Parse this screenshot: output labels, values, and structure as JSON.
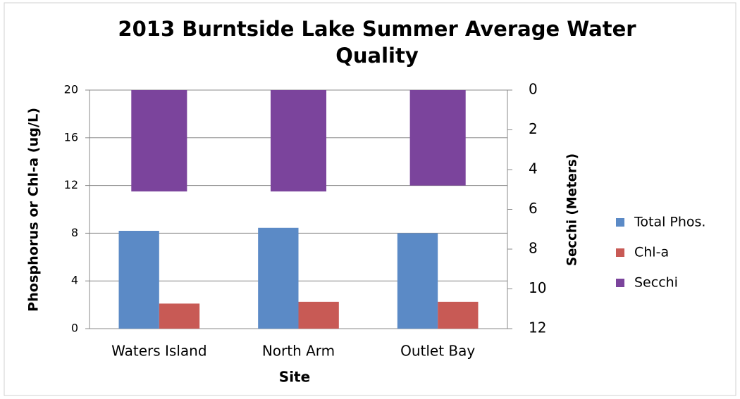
{
  "chart_data": {
    "type": "bar",
    "title": "2013 Burntside Lake Summer Average Water Quality",
    "xlabel": "Site",
    "ylabel": "Phosphorus or Chl-a (ug/L)",
    "y2label": "Secchi (Meters)",
    "categories": [
      "Waters Island",
      "North Arm",
      "Outlet Bay"
    ],
    "series": [
      {
        "name": "Total Phos.",
        "color": "#5b8ac6",
        "values": [
          8.2,
          8.45,
          8.0
        ]
      },
      {
        "name": "Chl-a",
        "color": "#c85a55",
        "values": [
          2.1,
          2.25,
          2.25
        ]
      },
      {
        "name": "Secchi",
        "color": "#7b449c",
        "values": [
          5.1,
          5.1,
          4.8
        ],
        "axis": "y2"
      }
    ],
    "ylim": [
      0,
      20
    ],
    "yticks": [
      0,
      4,
      8,
      12,
      16,
      20
    ],
    "y2lim": [
      12,
      0
    ],
    "y2ticks": [
      0,
      2,
      4,
      6,
      8,
      10,
      12
    ],
    "grid": true,
    "legend": "right"
  }
}
